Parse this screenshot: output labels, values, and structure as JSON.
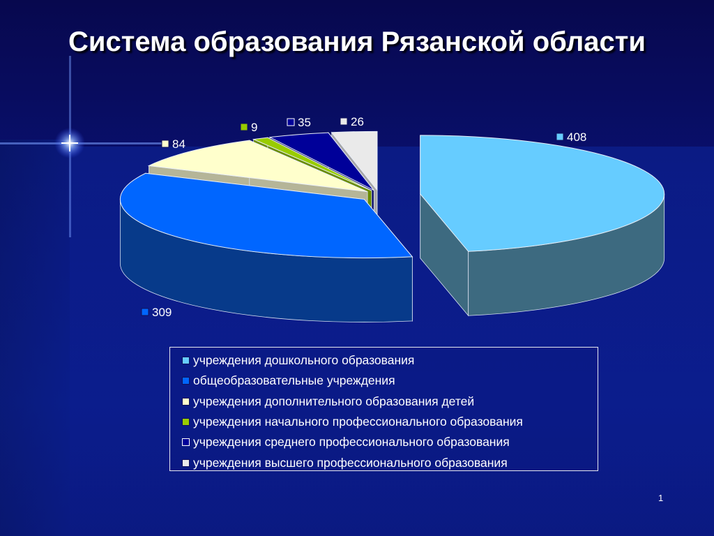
{
  "slide": {
    "title": "Система образования Рязанской области",
    "page_number": "1"
  },
  "chart_data": {
    "type": "pie",
    "title": "Система образования Рязанской области",
    "slices": [
      {
        "label": "учреждения дошкольного образования",
        "value": 408,
        "color": "#66ccff"
      },
      {
        "label": "общеобразовательные учреждения",
        "value": 309,
        "color": "#0066ff"
      },
      {
        "label": " учреждения дополнительного образования детей",
        "value": 84,
        "color": "#ffffcc"
      },
      {
        "label": " учреждения начального профессионального образования",
        "value": 9,
        "color": "#99cc00"
      },
      {
        "label": "учреждения среднего профессионального образования",
        "value": 35,
        "color": "#000099"
      },
      {
        "label": " учреждения высшего профессионального образования",
        "value": 26,
        "color": "#eaeaea"
      }
    ],
    "legend_position": "bottom"
  }
}
